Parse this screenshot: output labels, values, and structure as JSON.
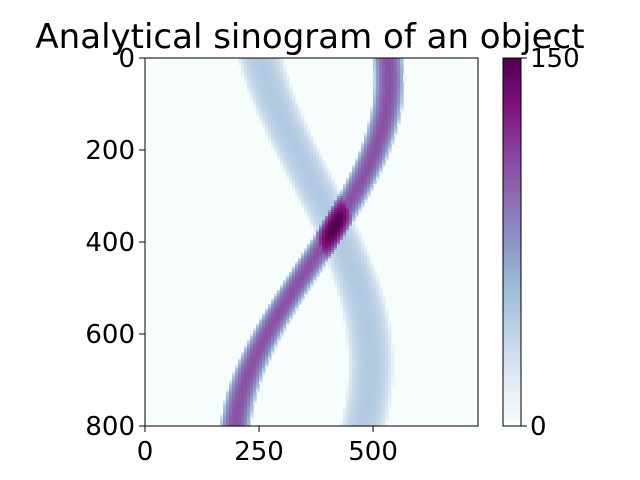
{
  "chart_data": {
    "type": "heatmap",
    "title": "Analytical sinogram of an object",
    "xlabel": "",
    "ylabel": "",
    "x_range": [
      0,
      730
    ],
    "y_range": [
      0,
      800
    ],
    "y_inverted": true,
    "x_ticks": [
      "0",
      "250",
      "500"
    ],
    "x_tick_values": [
      0,
      250,
      500
    ],
    "y_ticks": [
      "0",
      "200",
      "400",
      "600",
      "800"
    ],
    "y_tick_values": [
      0,
      200,
      400,
      600,
      800
    ],
    "colorbar": {
      "colormap": "BuPu",
      "range": [
        0,
        150
      ],
      "ticks": [
        "0",
        "150"
      ],
      "tick_values": [
        0,
        150
      ]
    },
    "series": [
      {
        "amplitude": 45,
        "center": 365,
        "radius": 130,
        "phase_deg": -60,
        "width": 50
      },
      {
        "amplitude": 105,
        "center": 365,
        "radius": 170,
        "phase_deg": 80,
        "width": 34
      }
    ]
  }
}
